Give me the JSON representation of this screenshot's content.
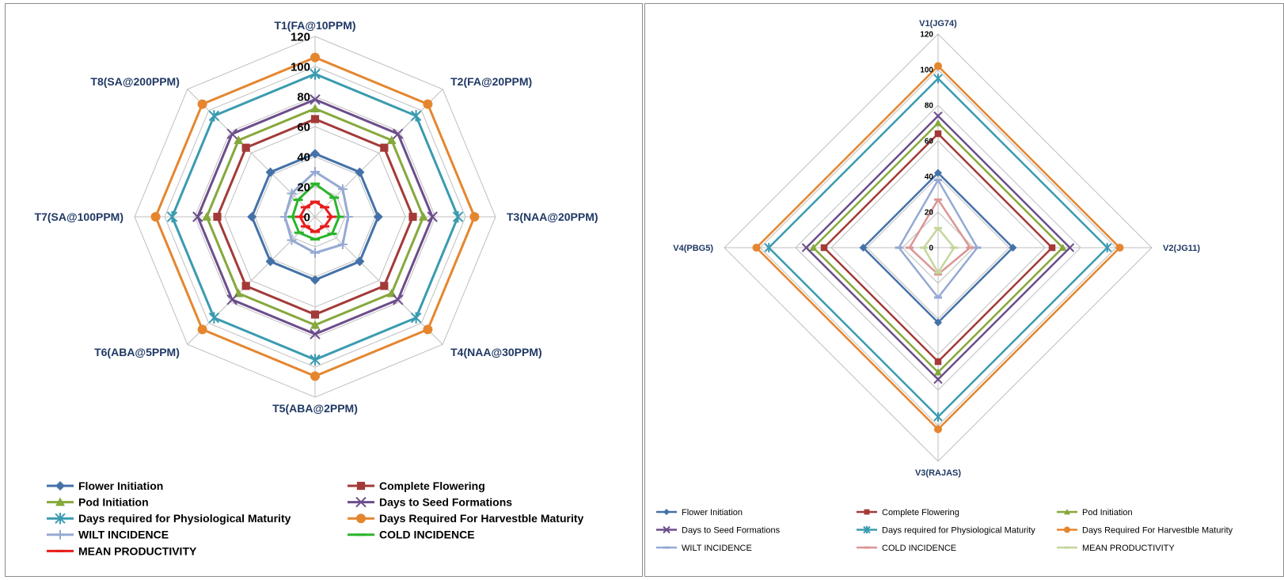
{
  "chart_data": [
    {
      "type": "radar",
      "categories": [
        "T1(FA@10PPM)",
        "T2(FA@20PPM)",
        "T3(NAA@20PPM)",
        "T4(NAA@30PPM)",
        "T5(ABA@2PPM)",
        "T6(ABA@5PPM)",
        "T7(SA@100PPM)",
        "T8(SA@200PPM)"
      ],
      "rlim": [
        0,
        120
      ],
      "ticks": [
        "0",
        "20",
        "40",
        "60",
        "80",
        "100",
        "120"
      ],
      "grid": true,
      "legend_position": "bottom",
      "series": [
        {
          "name": "Flower Initiation",
          "color": "#4472a8",
          "marker": "diamond",
          "values": [
            42,
            42,
            42,
            42,
            42,
            42,
            42,
            42
          ]
        },
        {
          "name": "Complete Flowering",
          "color": "#a33a38",
          "marker": "square",
          "values": [
            65,
            65,
            65,
            65,
            65,
            65,
            65,
            65
          ]
        },
        {
          "name": "Pod  Initiation",
          "color": "#86a83c",
          "marker": "triangle",
          "values": [
            72,
            72,
            72,
            72,
            72,
            72,
            72,
            72
          ]
        },
        {
          "name": "Days to Seed Formations",
          "color": "#6c4d8c",
          "marker": "x",
          "values": [
            78,
            78,
            78,
            78,
            78,
            78,
            78,
            78
          ]
        },
        {
          "name": "Days required for Physiological Maturity",
          "color": "#3a9bb0",
          "marker": "star",
          "values": [
            95,
            95,
            95,
            95,
            95,
            95,
            95,
            95
          ]
        },
        {
          "name": "Days Required For Harvestble Maturity",
          "color": "#e5862f",
          "marker": "circle",
          "values": [
            106,
            106,
            106,
            106,
            106,
            106,
            106,
            106
          ]
        },
        {
          "name": "WILT INCIDENCE",
          "color": "#95a9d3",
          "marker": "plus",
          "values": [
            30,
            26,
            22,
            26,
            24,
            22,
            20,
            22
          ]
        },
        {
          "name": "COLD INCIDENCE",
          "color": "#2bb52b",
          "marker": "dash",
          "values": [
            22,
            18,
            16,
            16,
            15,
            15,
            15,
            16
          ]
        },
        {
          "name": "MEAN PRODUCTIVITY",
          "color": "#e81c1c",
          "marker": "dash",
          "values": [
            10,
            9,
            11,
            9,
            10,
            9,
            10,
            9
          ]
        }
      ]
    },
    {
      "type": "radar",
      "categories": [
        "V1(JG74)",
        "V2(JG11)",
        "V3(RAJAS)",
        "V4(PBG5)"
      ],
      "rlim": [
        0,
        120
      ],
      "ticks": [
        "0",
        "20",
        "40",
        "60",
        "80",
        "100",
        "120"
      ],
      "grid": true,
      "legend_position": "bottom",
      "series": [
        {
          "name": "Flower Initiation",
          "color": "#4472a8",
          "marker": "diamond",
          "values": [
            42,
            42,
            42,
            42
          ]
        },
        {
          "name": "Complete Flowering",
          "color": "#a33a38",
          "marker": "square",
          "values": [
            64,
            64,
            64,
            64
          ]
        },
        {
          "name": "Pod  Initiation",
          "color": "#86a83c",
          "marker": "triangle",
          "values": [
            70,
            70,
            70,
            70
          ]
        },
        {
          "name": "Days to Seed Formations",
          "color": "#6c4d8c",
          "marker": "x",
          "values": [
            74,
            74,
            74,
            74
          ]
        },
        {
          "name": "Days required for Physiological Maturity",
          "color": "#3a9bb0",
          "marker": "star",
          "values": [
            95,
            95,
            95,
            95
          ]
        },
        {
          "name": "Days Required For Harvestble Maturity",
          "color": "#e5862f",
          "marker": "circle",
          "values": [
            102,
            102,
            102,
            102
          ]
        },
        {
          "name": "WILT INCIDENCE",
          "color": "#95a9d3",
          "marker": "dash",
          "values": [
            38,
            22,
            28,
            22
          ]
        },
        {
          "name": "COLD INCIDENCE",
          "color": "#da9694",
          "marker": "dash",
          "values": [
            27,
            18,
            15,
            16
          ]
        },
        {
          "name": "MEAN PRODUCTIVITY",
          "color": "#c4d79b",
          "marker": "dash",
          "values": [
            11,
            9,
            14,
            8
          ]
        }
      ]
    }
  ]
}
